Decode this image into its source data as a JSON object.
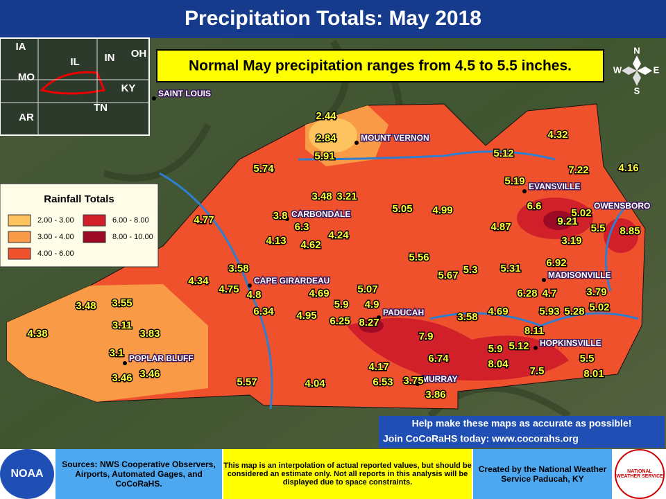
{
  "title": "Precipitation Totals: May 2018",
  "banner": "Normal May precipitation ranges from 4.5 to 5.5 inches.",
  "compass": [
    "N",
    "E",
    "S",
    "W"
  ],
  "inset_labels": [
    "IA",
    "IL",
    "IN",
    "OH",
    "MO",
    "KY",
    "AR",
    "TN"
  ],
  "cities": [
    "SAINT LOUIS",
    "MOUNT VERNON",
    "EVANSVILLE",
    "OWENSBORO",
    "CARBONDALE",
    "CAPE GIRARDEAU",
    "PADUCAH",
    "MADISONVILLE",
    "HOPKINSVILLE",
    "POPLAR BLUFF",
    "MURRAY"
  ],
  "legend": {
    "title": "Rainfall Totals",
    "items": [
      {
        "label": "2.00 - 3.00",
        "color": "#fdc35f"
      },
      {
        "label": "3.00 - 4.00",
        "color": "#f99a46"
      },
      {
        "label": "4.00 - 6.00",
        "color": "#f0512d"
      },
      {
        "label": "6.00 - 8.00",
        "color": "#d2202a"
      },
      {
        "label": "8.00 - 10.00",
        "color": "#9c0a25"
      }
    ]
  },
  "station_values": [
    2.44,
    2.84,
    5.91,
    5.74,
    3.48,
    3.21,
    3.8,
    6.3,
    4.77,
    4.13,
    4.62,
    4.24,
    5.05,
    4.99,
    4.32,
    5.12,
    7.22,
    4.16,
    5.19,
    6.6,
    5.02,
    9.21,
    4.87,
    5.5,
    8.85,
    3.19,
    3.58,
    4.34,
    4.75,
    4.8,
    6.34,
    4.69,
    5.07,
    5.56,
    5.67,
    5.3,
    5.31,
    6.92,
    6.28,
    4.7,
    3.79,
    5.9,
    4.9,
    6.25,
    8.27,
    4.95,
    3.58,
    4.69,
    5.93,
    5.28,
    5.02,
    3.48,
    3.55,
    3.11,
    3.83,
    4.38,
    7.9,
    8.11,
    5.9,
    5.12,
    3.1,
    6.74,
    8.04,
    7.5,
    5.5,
    8.01,
    4.17,
    3.46,
    3.46,
    6.53,
    3.75,
    5.57,
    4.04,
    3.86
  ],
  "cocorahs": [
    "Help make these maps as accurate as possible!",
    "Join CoCoRaHS today: www.cocorahs.org"
  ],
  "footer": {
    "sources": "Sources: NWS Cooperative Observers, Airports, Automated Gages, and CoCoRaHS.",
    "disclaimer": "This map is an interpolation of actual reported values, but should be considered an estimate only. Not all reports in this analysis will be displayed due to space constraints.",
    "credit": "Created by the National Weather Service Paducah, KY"
  },
  "logos": [
    "NOAA",
    "NATIONAL WEATHER SERVICE"
  ]
}
